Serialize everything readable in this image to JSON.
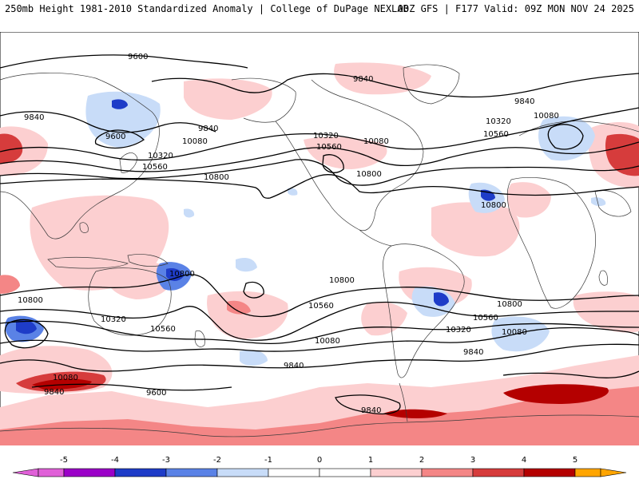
{
  "header": {
    "left_title": "250mb Height 1981-2010 Standardized Anomaly | College of DuPage NEXLAB",
    "right_title": "00Z GFS | F177 Valid: 09Z MON NOV 24 2025"
  },
  "colors": {
    "ocean": "#ffffff",
    "coast": "#3a3a3a",
    "contour": "#000000",
    "neg5": "#e060d8",
    "neg4": "#9b00c8",
    "neg3": "#1e3cc8",
    "neg2": "#5a82e6",
    "neg1": "#c8dcf8",
    "zero": "#ffffff",
    "pos1": "#fccfd0",
    "pos2": "#f48686",
    "pos3": "#d63c3c",
    "pos4": "#b40000",
    "pos5": "#ffa500"
  },
  "colorbar": {
    "ticks": [
      "-5",
      "-4",
      "-3",
      "-2",
      "-1",
      "0",
      "1",
      "2",
      "3",
      "4",
      "5"
    ]
  },
  "contour_labels": [
    "9600",
    "9840",
    "9600",
    "9840",
    "10080",
    "10320",
    "10560",
    "10800",
    "9840",
    "10320",
    "10560",
    "10080",
    "10800",
    "10320",
    "10560",
    "10080",
    "9840",
    "10800",
    "10800",
    "10800",
    "10800",
    "10560",
    "10320",
    "10560",
    "10800",
    "10080",
    "10320",
    "10080",
    "9840",
    "9840",
    "10080",
    "9600",
    "9840",
    "9840",
    "10560"
  ]
}
